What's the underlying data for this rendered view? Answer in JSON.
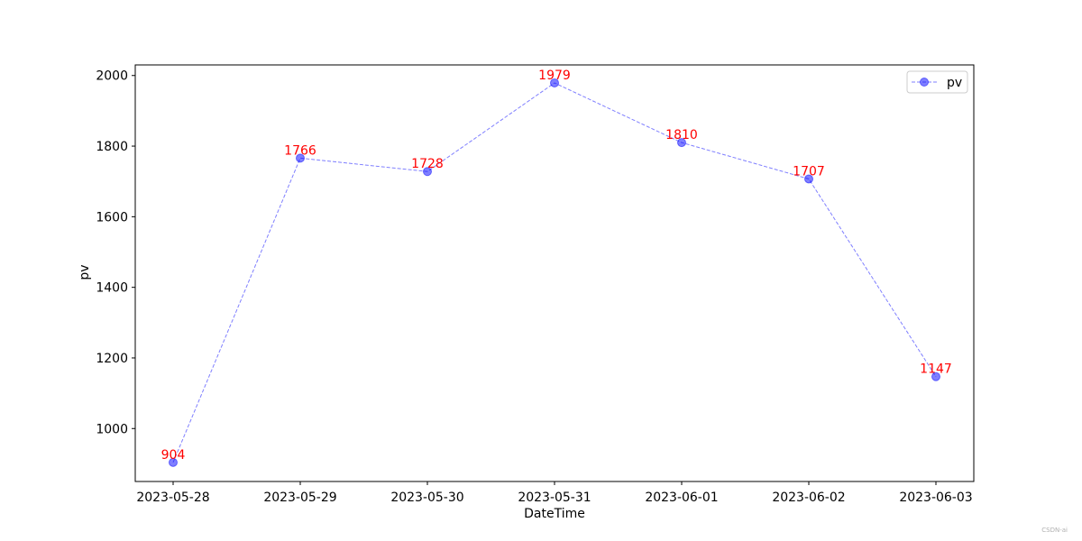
{
  "chart_data": {
    "type": "line",
    "title": "",
    "xlabel": "DateTime",
    "ylabel": "pv",
    "categories": [
      "2023-05-28",
      "2023-05-29",
      "2023-05-30",
      "2023-05-31",
      "2023-06-01",
      "2023-06-02",
      "2023-06-03"
    ],
    "series": [
      {
        "name": "pv",
        "values": [
          904,
          1766,
          1728,
          1979,
          1810,
          1707,
          1147
        ],
        "color": "#0000ff",
        "line_style": "dashed",
        "marker": "circle"
      }
    ],
    "data_labels": [
      "904",
      "1766",
      "1728",
      "1979",
      "1810",
      "1707",
      "1147"
    ],
    "data_label_color": "#ff0000",
    "ylim": [
      850,
      2030
    ],
    "yticks": [
      1000,
      1200,
      1400,
      1600,
      1800,
      2000
    ],
    "ytick_labels": [
      "1000",
      "1200",
      "1400",
      "1600",
      "1800",
      "2000"
    ],
    "grid": false,
    "legend": {
      "placement": "top-right",
      "entries": [
        "pv"
      ]
    }
  },
  "watermark": {
    "text": "CSDN-ai"
  }
}
